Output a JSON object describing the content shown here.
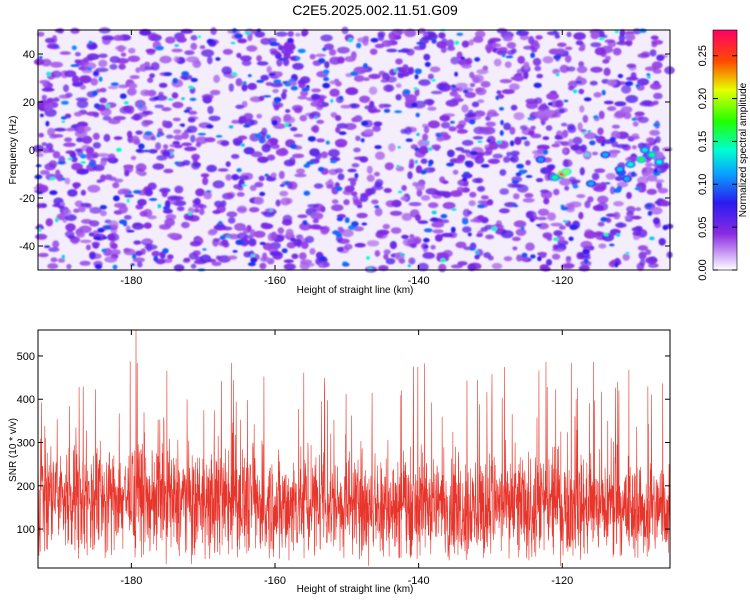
{
  "title": "C2E5.2025.002.11.51.G09",
  "chart_data": [
    {
      "type": "heatmap",
      "xlabel": "Height of straight line (km)",
      "ylabel": "Frequency (Hz)",
      "xlim": [
        -193,
        -105
      ],
      "ylim": [
        -50,
        50
      ],
      "xticks": [
        -180,
        -160,
        -140,
        -120
      ],
      "yticks": [
        -40,
        -20,
        0,
        20,
        40
      ],
      "colorbar": {
        "label": "Normalized spectral amplitude",
        "range": [
          0,
          0.28
        ],
        "ticks": [
          "0.00",
          "0.05",
          "0.10",
          "0.15",
          "0.20",
          "0.25"
        ]
      },
      "grid": false
    },
    {
      "type": "line",
      "xlabel": "Height of straight line (km)",
      "ylabel": "SNR (10 * v/v)",
      "xlim": [
        -193,
        -105
      ],
      "ylim": [
        10,
        560
      ],
      "xticks": [
        -180,
        -160,
        -140,
        -120
      ],
      "yticks": [
        100,
        200,
        300,
        400,
        500
      ],
      "series_color": "#e8352b",
      "typical_range": [
        40,
        330
      ],
      "typical_center": 160,
      "peak_value": 560,
      "grid": false
    }
  ]
}
